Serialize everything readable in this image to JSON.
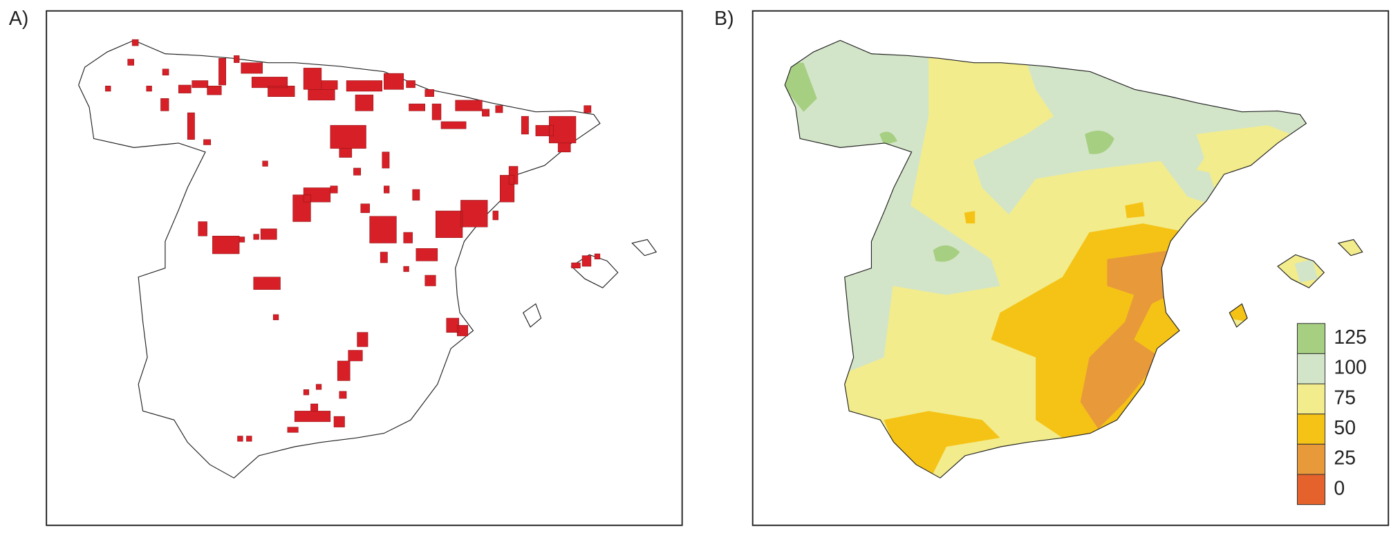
{
  "panels": [
    {
      "label": "A)"
    },
    {
      "label": "B)"
    }
  ],
  "legend": [
    {
      "value": 125,
      "color": "#a6cf82"
    },
    {
      "value": 100,
      "color": "#d3e5c8"
    },
    {
      "value": 75,
      "color": "#f2ec8c"
    },
    {
      "value": 50,
      "color": "#f5c316"
    },
    {
      "value": 25,
      "color": "#e89a3a"
    },
    {
      "value": 0,
      "color": "#e5622c"
    }
  ]
}
